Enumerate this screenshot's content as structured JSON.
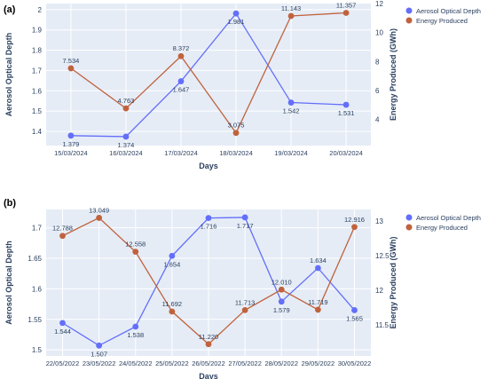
{
  "colors": {
    "aod": "#636EFA",
    "energy": "#C0623D",
    "plot_bg": "#E5ECF6",
    "grid": "#FFFFFF",
    "axis_title": "#2A3F5F"
  },
  "chart_data": [
    {
      "type": "line",
      "panel_label": "(a)",
      "xlabel": "Days",
      "ylabel_left": "Aerosol Optical Depth",
      "ylabel_right": "Energy Produced (GWh)",
      "categories": [
        "15/03/2024",
        "16/03/2024",
        "17/03/2024",
        "18/03/2024",
        "19/03/2024",
        "20/03/2024"
      ],
      "y_left_ticks": [
        1.4,
        1.5,
        1.6,
        1.7,
        1.8,
        1.9,
        2
      ],
      "y_left_range": [
        1.33,
        2.03
      ],
      "y_right_ticks": [
        4,
        6,
        8,
        10,
        12
      ],
      "y_right_range": [
        2.2,
        12
      ],
      "series": [
        {
          "name": "Aerosol Optical Depth",
          "axis": "left",
          "values": [
            1.379,
            1.374,
            1.647,
            1.981,
            1.542,
            1.531
          ],
          "labels": [
            "1.379",
            "1.374",
            "1.647",
            "1.981",
            "1.542",
            "1.531"
          ],
          "label_pos": [
            "below",
            "below",
            "below",
            "below",
            "below",
            "below"
          ]
        },
        {
          "name": "Energy Produced",
          "axis": "right",
          "values": [
            7.534,
            4.763,
            8.372,
            3.075,
            11.143,
            11.357
          ],
          "labels": [
            "7.534",
            "4.763",
            "8.372",
            "3.075",
            "11.143",
            "11.357"
          ],
          "label_pos": [
            "above",
            "above",
            "above",
            "above",
            "above",
            "above"
          ]
        }
      ],
      "grid": true,
      "legend_position": "top-right"
    },
    {
      "type": "line",
      "panel_label": "(b)",
      "xlabel": "Days",
      "ylabel_left": "Aerosol Optical Depth",
      "ylabel_right": "Energy Produced (GWh)",
      "categories": [
        "22/05/2022",
        "23/05/2022",
        "24/05/2022",
        "25/05/2022",
        "26/05/2022",
        "27/05/2022",
        "28/05/2022",
        "29/05/2022",
        "30/05/2022"
      ],
      "y_left_ticks": [
        1.5,
        1.55,
        1.6,
        1.65,
        1.7
      ],
      "y_left_range": [
        1.49,
        1.73
      ],
      "y_right_ticks": [
        11.5,
        12,
        12.5,
        13
      ],
      "y_right_range": [
        11.05,
        13.17
      ],
      "series": [
        {
          "name": "Aerosol Optical Depth",
          "axis": "left",
          "values": [
            1.544,
            1.507,
            1.538,
            1.654,
            1.716,
            1.717,
            1.579,
            1.634,
            1.565
          ],
          "labels": [
            "1.544",
            "1.507",
            "1.538",
            "1.654",
            "1.716",
            "1.717",
            "1.579",
            "1.634",
            "1.565"
          ],
          "label_pos": [
            "below",
            "below",
            "below",
            "below",
            "below",
            "below",
            "below",
            "above",
            "below"
          ]
        },
        {
          "name": "Energy Produced",
          "axis": "right",
          "values": [
            12.788,
            13.049,
            12.558,
            11.692,
            11.22,
            11.713,
            12.01,
            11.719,
            12.916
          ],
          "labels": [
            "12.788",
            "13.049",
            "12.558",
            "11.692",
            "11.220",
            "11.713",
            "12.010",
            "11.719",
            "12.916"
          ],
          "label_pos": [
            "above",
            "above",
            "above",
            "above",
            "above",
            "above",
            "above",
            "above",
            "above"
          ]
        }
      ],
      "grid": true,
      "legend_position": "top-right"
    }
  ]
}
